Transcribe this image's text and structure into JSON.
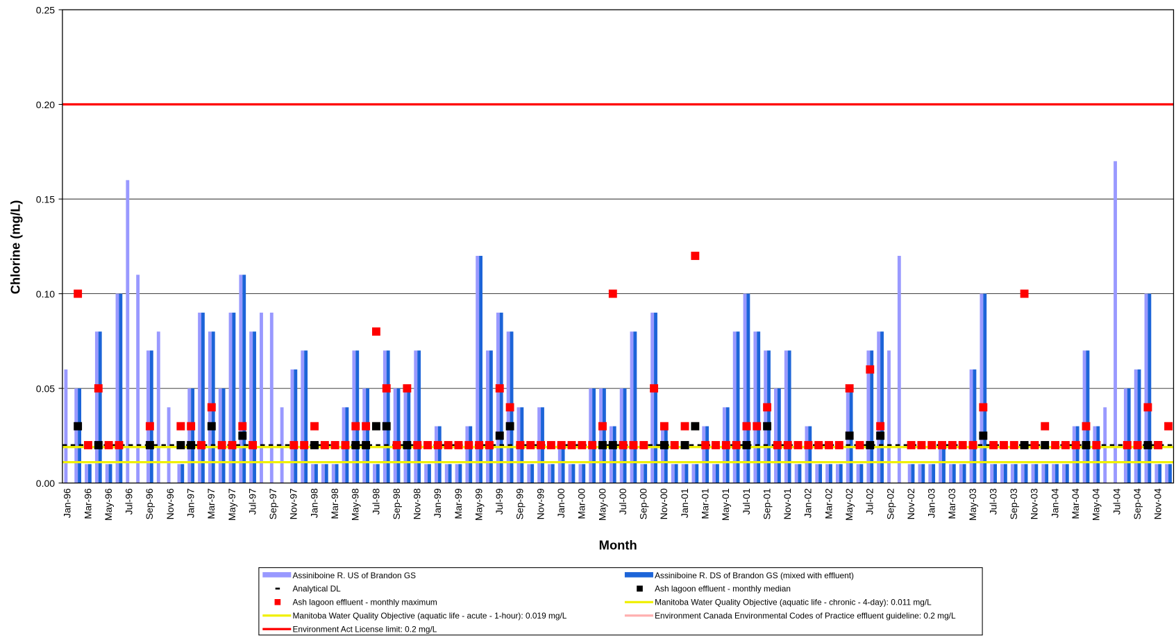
{
  "chart_data": {
    "type": "bar",
    "x_label": "Month",
    "y_label": "Chlorine (mg/L)",
    "ylim": [
      0,
      0.25
    ],
    "yticks": [
      {
        "value": 0,
        "label": "0.00"
      },
      0.05,
      {
        "value": 0.1,
        "label": "0.10"
      },
      0.15,
      {
        "value": 0.2,
        "label": "0.20"
      },
      0.25
    ],
    "grid": true,
    "categories": [
      "Jan-96",
      null,
      "Mar-96",
      null,
      "May-96",
      null,
      "Jul-96",
      null,
      "Sep-96",
      null,
      "Nov-96",
      null,
      "Jan-97",
      null,
      "Mar-97",
      null,
      "May-97",
      null,
      "Jul-97",
      null,
      "Sep-97",
      null,
      "Nov-97",
      null,
      "Jan-98",
      null,
      "Mar-98",
      null,
      "May-98",
      null,
      "Jul-98",
      null,
      "Sep-98",
      null,
      "Nov-98",
      null,
      "Jan-99",
      null,
      "Mar-99",
      null,
      "May-99",
      null,
      "Jul-99",
      null,
      "Sep-99",
      null,
      "Nov-99",
      null,
      "Jan-00",
      null,
      "Mar-00",
      null,
      "May-00",
      null,
      "Jul-00",
      null,
      "Sep-00",
      null,
      "Nov-00",
      null,
      "Jan-01",
      null,
      "Mar-01",
      null,
      "May-01",
      null,
      "Jul-01",
      null,
      "Sep-01",
      null,
      "Nov-01",
      null,
      "Jan-02",
      null,
      "Mar-02",
      null,
      "May-02",
      null,
      "Jul-02",
      null,
      "Sep-02",
      null,
      "Nov-02",
      null,
      "Jan-03",
      null,
      "Mar-03",
      null,
      "May-03",
      null,
      "Jul-03",
      null,
      "Sep-03",
      null,
      "Nov-03",
      null,
      "Jan-04",
      null,
      "Mar-04",
      null,
      "May-04",
      null,
      "Jul-04",
      null,
      "Sep-04",
      null,
      "Nov-04",
      null
    ],
    "series": [
      {
        "name": "Assiniboine R. US of Brandon GS",
        "kind": "bar",
        "color": "#9999ff",
        "values": [
          0.06,
          0.05,
          0.01,
          0.08,
          0.01,
          0.1,
          0.16,
          0.11,
          0.07,
          0.08,
          0.04,
          0.01,
          0.05,
          0.09,
          0.08,
          0.05,
          0.09,
          0.11,
          0.08,
          0.09,
          0.09,
          0.04,
          0.06,
          0.07,
          0.01,
          0.01,
          0.01,
          0.04,
          0.07,
          0.05,
          0.01,
          0.07,
          0.05,
          0.05,
          0.07,
          0.01,
          0.03,
          0.01,
          0.01,
          0.03,
          0.12,
          0.07,
          0.09,
          0.08,
          0.04,
          0.01,
          0.04,
          0.01,
          0.02,
          0.01,
          0.01,
          0.05,
          0.05,
          0.03,
          0.05,
          0.08,
          0.01,
          0.09,
          0.03,
          0.01,
          0.01,
          0.01,
          0.03,
          0.01,
          0.04,
          0.08,
          0.1,
          0.08,
          0.07,
          0.05,
          0.07,
          0.01,
          0.03,
          0.01,
          0.01,
          0.01,
          0.05,
          0.01,
          0.07,
          0.08,
          0.07,
          0.12,
          0.01,
          0.01,
          0.01,
          0.02,
          0.01,
          0.01,
          0.06,
          0.1,
          0.01,
          0.01,
          0.01,
          0.01,
          0.01,
          0.01,
          0.01,
          0.01,
          0.03,
          0.07,
          0.03,
          0.04,
          0.17,
          0.05,
          0.06,
          0.1,
          0.01,
          0.01
        ]
      },
      {
        "name": "Assiniboine R. DS of Brandon GS (mixed with effluent)",
        "kind": "bar",
        "color": "#1c64d8",
        "values": [
          null,
          0.05,
          0.01,
          0.08,
          0.01,
          0.1,
          null,
          null,
          0.07,
          null,
          null,
          0.01,
          0.05,
          0.09,
          0.08,
          0.05,
          0.09,
          0.11,
          0.08,
          null,
          null,
          null,
          0.06,
          0.07,
          0.01,
          0.01,
          0.01,
          0.04,
          0.07,
          0.05,
          0.01,
          0.07,
          0.05,
          0.05,
          0.07,
          0.01,
          0.03,
          0.01,
          0.01,
          0.03,
          0.12,
          0.07,
          0.09,
          0.08,
          0.04,
          0.01,
          0.04,
          0.01,
          0.02,
          0.01,
          0.01,
          0.05,
          0.05,
          0.03,
          0.05,
          0.08,
          0.01,
          0.09,
          0.03,
          0.01,
          0.01,
          0.01,
          0.03,
          0.01,
          0.04,
          0.08,
          0.1,
          0.08,
          0.07,
          0.05,
          0.07,
          0.01,
          0.03,
          0.01,
          0.01,
          0.01,
          0.05,
          0.01,
          0.07,
          0.08,
          null,
          null,
          0.01,
          0.01,
          0.01,
          0.02,
          0.01,
          0.01,
          0.06,
          0.1,
          0.01,
          0.01,
          0.01,
          0.01,
          0.01,
          0.01,
          0.01,
          0.01,
          0.03,
          0.07,
          0.03,
          null,
          null,
          0.05,
          0.06,
          0.1,
          0.01,
          0.01
        ]
      },
      {
        "name": "Analytical DL",
        "kind": "reference",
        "color": "#000000",
        "dash": true,
        "value": 0.02
      },
      {
        "name": "Ash lagoon effluent - monthly median",
        "kind": "marker",
        "color": "#000000",
        "values": [
          null,
          0.03,
          null,
          0.02,
          null,
          null,
          null,
          null,
          0.02,
          null,
          null,
          0.02,
          0.02,
          null,
          0.03,
          null,
          null,
          0.025,
          null,
          null,
          null,
          null,
          null,
          null,
          0.02,
          null,
          null,
          null,
          0.02,
          0.02,
          0.03,
          0.03,
          null,
          0.02,
          null,
          null,
          null,
          null,
          null,
          null,
          null,
          null,
          0.025,
          0.03,
          null,
          null,
          null,
          null,
          null,
          null,
          null,
          null,
          0.02,
          0.02,
          null,
          null,
          null,
          null,
          0.02,
          null,
          0.02,
          0.03,
          null,
          null,
          null,
          null,
          0.02,
          null,
          0.03,
          null,
          null,
          null,
          null,
          null,
          null,
          null,
          0.025,
          null,
          0.02,
          0.025,
          null,
          null,
          null,
          null,
          null,
          null,
          null,
          null,
          null,
          0.025,
          null,
          null,
          null,
          0.02,
          null,
          0.02,
          null,
          null,
          null,
          0.02,
          null,
          null,
          null,
          null,
          null,
          0.02,
          0.02,
          null
        ]
      },
      {
        "name": "Ash lagoon effluent - monthly maximum",
        "kind": "marker",
        "color": "#ff0000",
        "values": [
          null,
          0.1,
          0.02,
          0.05,
          0.02,
          0.02,
          null,
          null,
          0.03,
          null,
          null,
          0.03,
          0.03,
          0.02,
          0.04,
          0.02,
          0.02,
          0.03,
          0.02,
          null,
          null,
          null,
          0.02,
          0.02,
          0.03,
          0.02,
          0.02,
          0.02,
          0.03,
          0.03,
          0.08,
          0.05,
          0.02,
          0.05,
          0.02,
          0.02,
          0.02,
          0.02,
          0.02,
          0.02,
          0.02,
          0.02,
          0.05,
          0.04,
          0.02,
          0.02,
          0.02,
          0.02,
          0.02,
          0.02,
          0.02,
          0.02,
          0.03,
          0.1,
          0.02,
          0.02,
          0.02,
          0.05,
          0.03,
          0.02,
          0.03,
          0.12,
          0.02,
          0.02,
          0.02,
          0.02,
          0.03,
          0.03,
          0.04,
          0.02,
          0.02,
          0.02,
          0.02,
          0.02,
          0.02,
          0.02,
          0.05,
          0.02,
          0.06,
          0.03,
          null,
          null,
          0.02,
          0.02,
          0.02,
          0.02,
          0.02,
          0.02,
          0.02,
          0.04,
          0.02,
          0.02,
          0.02,
          0.1,
          0.02,
          0.03,
          0.02,
          0.02,
          0.02,
          0.03,
          0.02,
          null,
          null,
          0.02,
          0.02,
          0.04,
          0.02,
          0.03
        ]
      },
      {
        "name": "Manitoba Water Quality Objective (aquatic life - chronic - 4-day): 0.011 mg/L",
        "kind": "reference",
        "color": "#f0f000",
        "value": 0.011
      },
      {
        "name": "Manitoba Water Quality Objective (aquatic life - acute - 1-hour): 0.019 mg/L",
        "kind": "reference",
        "color": "#f0f000",
        "value": 0.019
      },
      {
        "name": "Environment Canada Environmental Codes of Practice effluent guideline: 0.2 mg/L",
        "kind": "reference",
        "color": "#ffb0b0",
        "value": 0.2
      },
      {
        "name": "Environment Act License limit: 0.2 mg/L",
        "kind": "reference",
        "color": "#ff0000",
        "value": 0.2
      }
    ]
  }
}
